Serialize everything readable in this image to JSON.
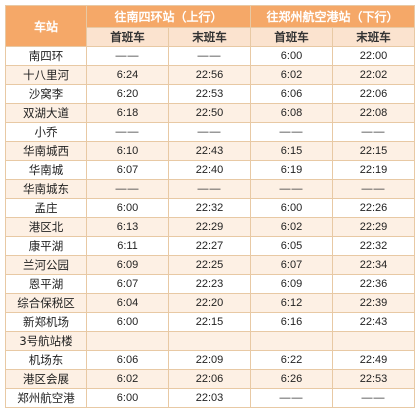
{
  "header": {
    "station": "车站",
    "direction_up": "往南四环站（上行）",
    "direction_down": "往郑州航空港站（下行）",
    "first_train": "首班车",
    "last_train": "末班车"
  },
  "rows": [
    {
      "station": "南四环",
      "up_first": "——",
      "up_last": "——",
      "down_first": "6:00",
      "down_last": "22:00"
    },
    {
      "station": "十八里河",
      "up_first": "6:24",
      "up_last": "22:56",
      "down_first": "6:02",
      "down_last": "22:02"
    },
    {
      "station": "沙窝李",
      "up_first": "6:20",
      "up_last": "22:53",
      "down_first": "6:06",
      "down_last": "22:06"
    },
    {
      "station": "双湖大道",
      "up_first": "6:18",
      "up_last": "22:50",
      "down_first": "6:08",
      "down_last": "22:08"
    },
    {
      "station": "小乔",
      "up_first": "——",
      "up_last": "——",
      "down_first": "——",
      "down_last": "——"
    },
    {
      "station": "华南城西",
      "up_first": "6:10",
      "up_last": "22:43",
      "down_first": "6:15",
      "down_last": "22:15"
    },
    {
      "station": "华南城",
      "up_first": "6:07",
      "up_last": "22:40",
      "down_first": "6:19",
      "down_last": "22:19"
    },
    {
      "station": "华南城东",
      "up_first": "——",
      "up_last": "——",
      "down_first": "——",
      "down_last": "——"
    },
    {
      "station": "孟庄",
      "up_first": "6:00",
      "up_last": "22:32",
      "down_first": "6:00",
      "down_last": "22:26"
    },
    {
      "station": "港区北",
      "up_first": "6:13",
      "up_last": "22:29",
      "down_first": "6:02",
      "down_last": "22:29"
    },
    {
      "station": "康平湖",
      "up_first": "6:11",
      "up_last": "22:27",
      "down_first": "6:05",
      "down_last": "22:32"
    },
    {
      "station": "兰河公园",
      "up_first": "6:09",
      "up_last": "22:25",
      "down_first": "6:07",
      "down_last": "22:34"
    },
    {
      "station": "恩平湖",
      "up_first": "6:07",
      "up_last": "22:23",
      "down_first": "6:09",
      "down_last": "22:36"
    },
    {
      "station": "综合保税区",
      "up_first": "6:04",
      "up_last": "22:20",
      "down_first": "6:12",
      "down_last": "22:39"
    },
    {
      "station": "新郑机场",
      "up_first": "6:00",
      "up_last": "22:15",
      "down_first": "6:16",
      "down_last": "22:43"
    },
    {
      "station": "3号航站楼",
      "up_first": "",
      "up_last": "",
      "down_first": "",
      "down_last": ""
    },
    {
      "station": "机场东",
      "up_first": "6:06",
      "up_last": "22:09",
      "down_first": "6:22",
      "down_last": "22:49"
    },
    {
      "station": "港区会展",
      "up_first": "6:02",
      "up_last": "22:06",
      "down_first": "6:26",
      "down_last": "22:53"
    },
    {
      "station": "郑州航空港",
      "up_first": "6:00",
      "up_last": "22:03",
      "down_first": "——",
      "down_last": "——"
    }
  ]
}
